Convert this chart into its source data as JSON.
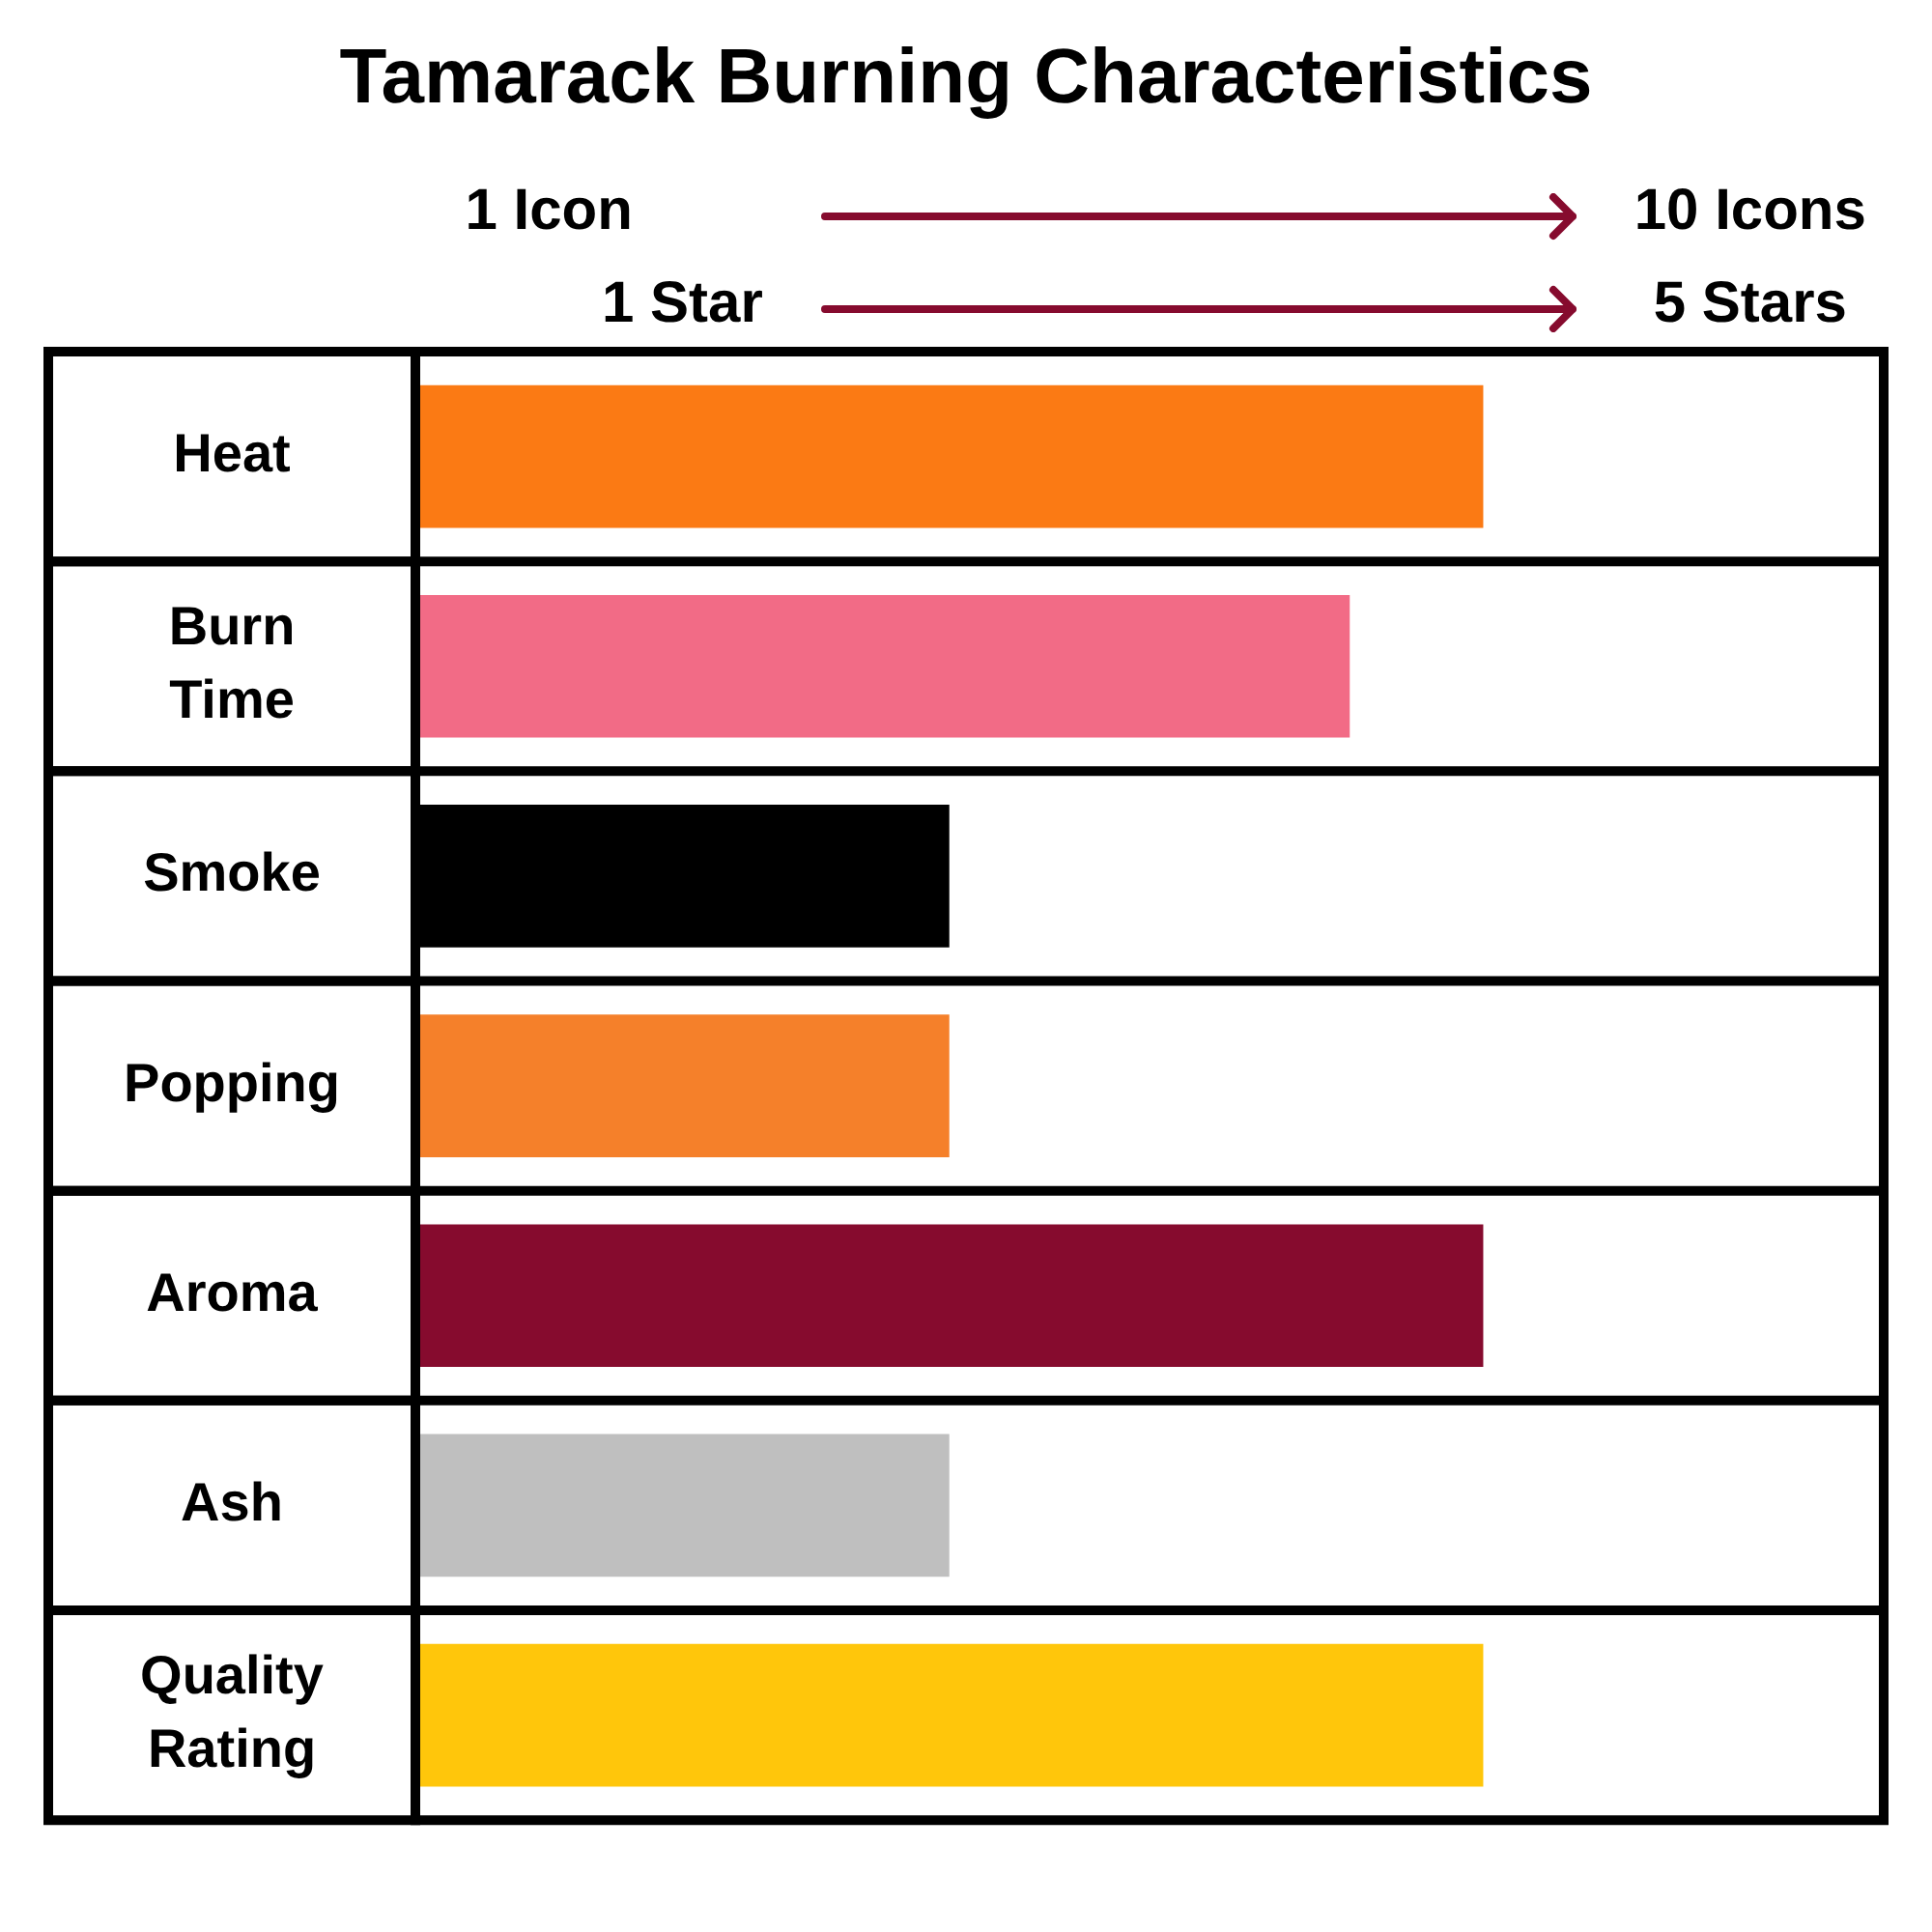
{
  "chart_data": {
    "type": "bar",
    "orientation": "horizontal",
    "title": "Tamarack Burning Characteristics",
    "categories": [
      "Heat",
      "Burn Time",
      "Smoke",
      "Popping",
      "Aroma",
      "Ash",
      "Quality Rating"
    ],
    "series": [
      {
        "values": [
          8,
          7,
          4,
          4,
          8,
          4,
          null
        ],
        "colors": [
          "#fb7a14",
          "#f26b86",
          "#000000",
          "#f5802a",
          "#860b2e",
          "#bfbfbf",
          null
        ]
      },
      {
        "axis": "x2",
        "color": "#ffc60b",
        "values": [
          null,
          null,
          null,
          null,
          null,
          null,
          4
        ]
      }
    ],
    "xlim": [
      0,
      11
    ],
    "xticks": [
      {
        "value": 1,
        "label": "1 Icon"
      },
      {
        "value": 10,
        "label": "10 Icons"
      }
    ],
    "x2lim": [
      0,
      5.5
    ],
    "x2ticks": [
      {
        "value": 1,
        "label": "1 Star"
      },
      {
        "value": 5,
        "label": "5 Stars"
      }
    ],
    "grid": "y"
  }
}
